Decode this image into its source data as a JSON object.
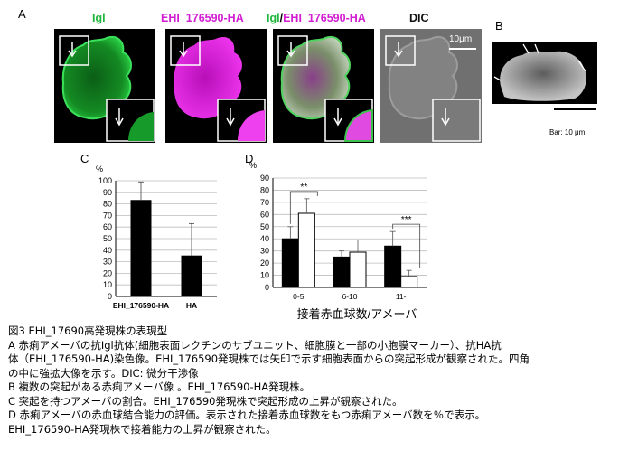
{
  "panels": {
    "a": {
      "letter": "A",
      "labels": {
        "igl": "Igl",
        "ha": "EHI_176590-HA",
        "merge_igl": "Igl",
        "merge_sep": "/",
        "merge_ha": "EHI_176590-HA",
        "dic": "DIC"
      },
      "scalebar_label": "10μm"
    },
    "b": {
      "letter": "B",
      "bar_label": "Bar: 10 μm"
    },
    "c": {
      "letter": "C",
      "unit": "%"
    },
    "d": {
      "letter": "D",
      "unit": "%"
    }
  },
  "chart_data": [
    {
      "type": "bar",
      "panel": "C",
      "categories": [
        "EHI_176590-HA",
        "HA"
      ],
      "values": [
        83,
        35
      ],
      "error_upper": [
        99,
        63
      ],
      "ylabel": "%",
      "ylim": [
        0,
        100
      ],
      "yticks": [
        0,
        10,
        20,
        30,
        40,
        50,
        60,
        70,
        80,
        90,
        100
      ],
      "grid": true,
      "colors": [
        "#000000",
        "#000000"
      ]
    },
    {
      "type": "bar",
      "panel": "D",
      "categories": [
        "0-5",
        "6-10",
        "11-"
      ],
      "series": [
        {
          "values": [
            40,
            25,
            34
          ],
          "error_upper": [
            50,
            30,
            46
          ],
          "color": "#000000"
        },
        {
          "values": [
            61,
            29,
            9
          ],
          "error_upper": [
            73,
            39,
            14
          ],
          "color": "#ffffff"
        }
      ],
      "xlabel": "接着赤血球数/アメーバ",
      "ylabel": "%",
      "ylim": [
        0,
        90
      ],
      "yticks": [
        0,
        10,
        20,
        30,
        40,
        50,
        60,
        70,
        80,
        90
      ],
      "grid": true,
      "significance": [
        {
          "category": "0-5",
          "label": "**"
        },
        {
          "category": "11-",
          "label": "***"
        }
      ]
    }
  ],
  "caption": {
    "line1": "図3 EHI_17690高発現株の表現型",
    "line2": "A 赤痢アメーバの抗Igl抗体(細胞表面レクチンのサブユニット、細胞膜と一部の小胞膜マーカー）、抗HA抗",
    "line3": "体（EHI_176590-HA)染色像。EHI_176590発現株では矢印で示す細胞表面からの突起形成が観察された。四角",
    "line4": "の中に強拡大像を示す。DIC: 微分干渉像",
    "line5": "B 複数の突起がある赤痢アメーバ像 。EHI_176590-HA発現株。",
    "line6": "C 突起を持つアメーバの割合。EHI_176590発現株で突起形成の上昇が観察された。",
    "line7": "D 赤痢アメーバの赤血球結合能力の評価。表示された接着赤血球数をもつ赤痢アメーバ数を％で表示。",
    "line8": "EHI_176590-HA発現株で接着能力の上昇が観察された。"
  }
}
